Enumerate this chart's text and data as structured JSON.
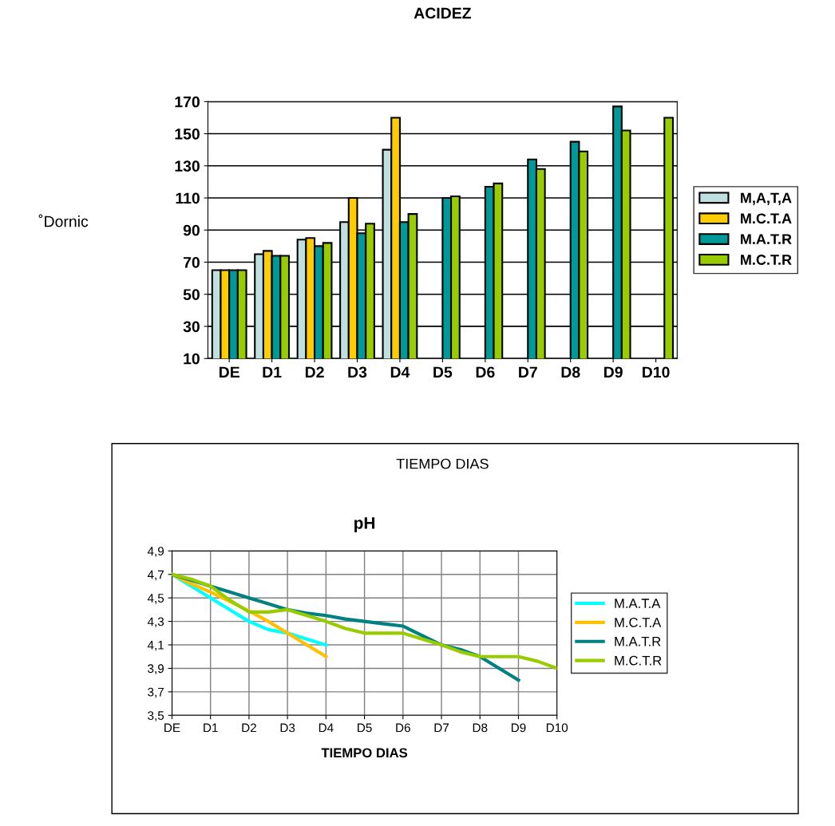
{
  "chart_data": [
    {
      "type": "bar",
      "title": "ACIDEZ",
      "xlabel": "TIEMPO DIAS",
      "ylabel": "˚Dornic",
      "categories": [
        "DE",
        "D1",
        "D2",
        "D3",
        "D4",
        "D5",
        "D6",
        "D7",
        "D8",
        "D9",
        "D10"
      ],
      "series": [
        {
          "name": "M,A,T,A",
          "color": "#c0e0e0",
          "values": [
            65,
            75,
            84,
            95,
            140,
            null,
            null,
            null,
            null,
            null,
            null
          ]
        },
        {
          "name": "M.C.T.A",
          "color": "#ffcc00",
          "values": [
            65,
            77,
            85,
            110,
            160,
            null,
            null,
            null,
            null,
            null,
            null
          ]
        },
        {
          "name": "M.A.T.R",
          "color": "#009999",
          "values": [
            65,
            74,
            80,
            88,
            95,
            110,
            117,
            134,
            145,
            167,
            null
          ]
        },
        {
          "name": "M.C.T.R",
          "color": "#99cc00",
          "values": [
            65,
            74,
            82,
            94,
            100,
            111,
            119,
            128,
            139,
            152,
            160
          ]
        }
      ],
      "ylim": [
        10,
        170
      ],
      "yticks": [
        10,
        30,
        50,
        70,
        90,
        110,
        130,
        150,
        170
      ],
      "grid": "y",
      "legend": "right"
    },
    {
      "type": "line",
      "title": "pH",
      "xlabel": "TIEMPO DIAS",
      "categories": [
        "DE",
        null,
        "D1",
        null,
        "D2",
        null,
        "D3",
        null,
        "D4",
        null,
        "D5",
        null,
        "D6",
        null,
        "D7",
        null,
        "D8",
        null,
        "D9",
        null,
        "D10"
      ],
      "ylim": [
        3.5,
        4.9
      ],
      "yticks": [
        {
          "value": 3.5,
          "label": "3,5"
        },
        {
          "value": 3.7,
          "label": "3,7"
        },
        {
          "value": 3.9,
          "label": "3,9"
        },
        {
          "value": 4.1,
          "label": "4,1"
        },
        {
          "value": 4.3,
          "label": "4,3"
        },
        {
          "value": 4.5,
          "label": "4,5"
        },
        {
          "value": 4.7,
          "label": "4,7"
        },
        {
          "value": 4.9,
          "label": "4,9"
        }
      ],
      "series": [
        {
          "name": "M.A.T.A",
          "color": "#00ffff",
          "values": [
            4.7,
            4.6,
            4.5,
            4.4,
            4.3,
            4.23,
            4.2,
            4.15,
            4.1,
            null,
            null,
            null,
            null,
            null,
            null,
            null,
            null,
            null,
            null,
            null,
            null
          ]
        },
        {
          "name": "M.C.T.A",
          "color": "#ffc000",
          "values": [
            4.7,
            4.62,
            4.55,
            4.47,
            4.39,
            4.3,
            4.2,
            4.1,
            4.0,
            null,
            null,
            null,
            null,
            null,
            null,
            null,
            null,
            null,
            null,
            null,
            null
          ]
        },
        {
          "name": "M.A.T.R",
          "color": "#008080",
          "values": [
            4.7,
            4.65,
            4.6,
            4.55,
            4.5,
            4.45,
            4.4,
            4.37,
            4.35,
            4.32,
            4.3,
            4.28,
            4.26,
            4.18,
            4.1,
            4.06,
            4.0,
            3.9,
            3.8,
            null,
            null
          ]
        },
        {
          "name": "M.C.T.R",
          "color": "#99cc00",
          "values": [
            4.7,
            4.66,
            4.6,
            4.48,
            4.38,
            4.38,
            4.4,
            4.35,
            4.3,
            4.24,
            4.2,
            4.2,
            4.2,
            4.15,
            4.1,
            4.04,
            4.0,
            4.0,
            4.0,
            3.96,
            3.9
          ]
        }
      ],
      "grid": true,
      "legend": "right",
      "marker": "none",
      "line_style": "solid"
    }
  ]
}
